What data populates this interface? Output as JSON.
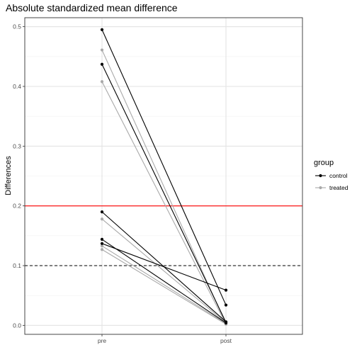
{
  "chart_data": {
    "type": "line",
    "title": "Absolute standardized mean difference",
    "xlabel": "",
    "ylabel": "Differences",
    "categories": [
      "pre",
      "post"
    ],
    "ylim": [
      -0.015,
      0.515
    ],
    "yticks": [
      "0.0",
      "0.1",
      "0.2",
      "0.3",
      "0.4",
      "0.5"
    ],
    "ytick_values": [
      0.0,
      0.1,
      0.2,
      0.3,
      0.4,
      0.5
    ],
    "grid": true,
    "legend": {
      "title": "group",
      "position": "right",
      "entries": [
        {
          "label": "control",
          "color": "#000000"
        },
        {
          "label": "treated",
          "color": "#a9a9a9"
        }
      ]
    },
    "reference_lines": [
      {
        "y": 0.2,
        "color": "#ff0000",
        "style": "solid"
      },
      {
        "y": 0.1,
        "color": "#000000",
        "style": "dashed"
      }
    ],
    "series": [
      {
        "group": "treated",
        "values": [
          0.461,
          0.003
        ]
      },
      {
        "group": "treated",
        "values": [
          0.408,
          0.002
        ]
      },
      {
        "group": "treated",
        "values": [
          0.178,
          0.004
        ]
      },
      {
        "group": "treated",
        "values": [
          0.133,
          0.003
        ]
      },
      {
        "group": "treated",
        "values": [
          0.127,
          0.002
        ]
      },
      {
        "group": "control",
        "values": [
          0.495,
          0.034
        ]
      },
      {
        "group": "control",
        "values": [
          0.437,
          0.005
        ]
      },
      {
        "group": "control",
        "values": [
          0.19,
          0.006
        ]
      },
      {
        "group": "control",
        "values": [
          0.144,
          0.004
        ]
      },
      {
        "group": "control",
        "values": [
          0.137,
          0.059
        ]
      }
    ]
  }
}
